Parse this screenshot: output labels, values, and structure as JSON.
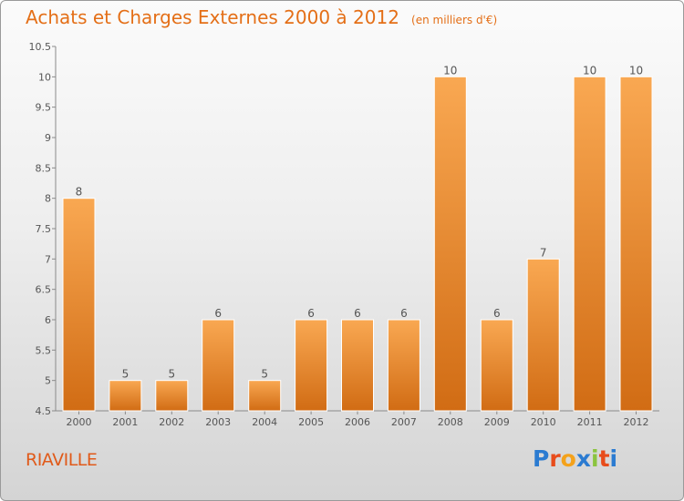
{
  "header": {
    "title": "Achats et Charges Externes 2000 à 2012",
    "unit": "(en milliers d'€)"
  },
  "footer": {
    "commune": "RIAVILLE",
    "logo_text": "Proxiti"
  },
  "colors": {
    "bar_light": "#f9a852",
    "bar_dark": "#d16c14",
    "title": "#e46f17",
    "axis": "#555555"
  },
  "chart_data": {
    "type": "bar",
    "title": "Achats et Charges Externes 2000 à 2012",
    "unit": "(en milliers d'€)",
    "categories": [
      "2000",
      "2001",
      "2002",
      "2003",
      "2004",
      "2005",
      "2006",
      "2007",
      "2008",
      "2009",
      "2010",
      "2011",
      "2012"
    ],
    "values": [
      8,
      5,
      5,
      6,
      5,
      6,
      6,
      6,
      10,
      6,
      7,
      10,
      10
    ],
    "ylim": [
      4.5,
      10.5
    ],
    "yticks": [
      4.5,
      5,
      5.5,
      6,
      6.5,
      7,
      7.5,
      8,
      8.5,
      9,
      9.5,
      10,
      10.5
    ],
    "grid": false,
    "legend": "none"
  }
}
